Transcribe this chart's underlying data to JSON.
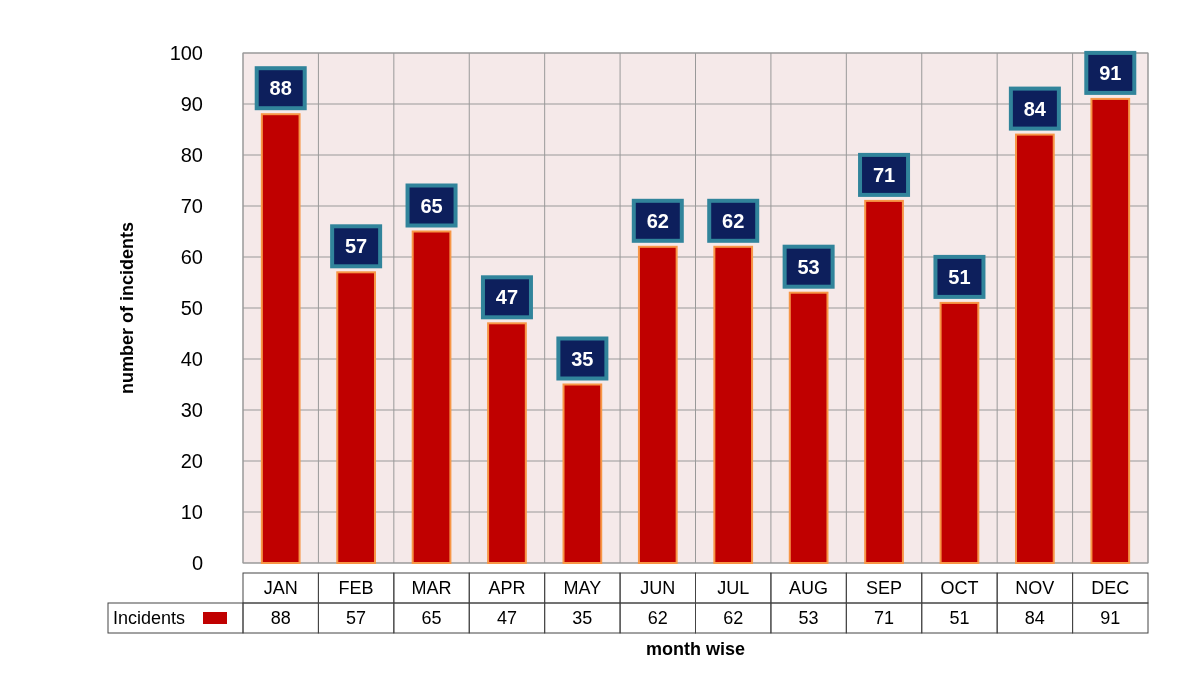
{
  "chart_data": [
    {
      "type": "bar",
      "ylabel": "number of incidents",
      "categories": [
        "JAN",
        "FEB",
        "MAR",
        "APR",
        "MAY",
        "JUN",
        "JUL",
        "AUG",
        "SEP",
        "OCT",
        "NOV",
        "DEC"
      ],
      "series": [
        {
          "color": "#c00000",
          "values": [
            88,
            57,
            65,
            47,
            35,
            62,
            62,
            53,
            71,
            51,
            84,
            91
          ],
          "value_labels": [
            "88",
            "57",
            "65",
            "47",
            "35",
            "62",
            "62",
            "53",
            "71",
            "51",
            "84",
            "91"
          ]
        }
      ],
      "ylim": [
        0,
        100
      ],
      "yticks": [
        0,
        10,
        20,
        30,
        40,
        50,
        60,
        70,
        80,
        90,
        100
      ],
      "grid": true
    },
    {
      "type": "other",
      "xlabel": "month wise",
      "categories": [
        null,
        null,
        null,
        null,
        null,
        null,
        null,
        null,
        null,
        null,
        null,
        null
      ],
      "series": [
        {
          "name": "Incidents",
          "color": "#c00000",
          "values": [
            88,
            57,
            65,
            47,
            35,
            62,
            62,
            53,
            71,
            51,
            84,
            91
          ]
        }
      ],
      "legend": "left",
      "data_labels": true
    }
  ]
}
